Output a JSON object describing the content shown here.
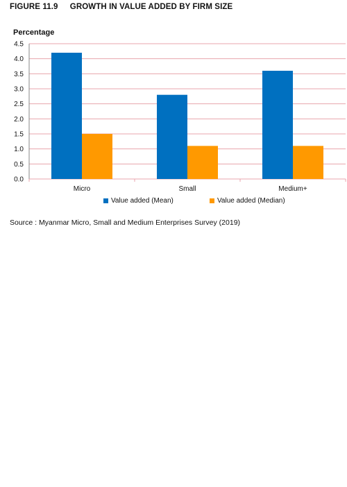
{
  "figure": {
    "number": "FIGURE 11.9",
    "title": "GROWTH IN VALUE ADDED BY FIRM SIZE"
  },
  "chart_data": {
    "type": "bar",
    "title": "",
    "xlabel": "",
    "ylabel": "Percentage",
    "categories": [
      "Micro",
      "Small",
      "Medium+"
    ],
    "series": [
      {
        "name": "Value added (Mean)",
        "values": [
          4.2,
          2.8,
          3.6
        ],
        "color": "#0070C0"
      },
      {
        "name": "Value added (Median)",
        "values": [
          1.5,
          1.1,
          1.1
        ],
        "color": "#FF9900"
      }
    ],
    "ylim": [
      0,
      4.5
    ],
    "yticks": [
      "0.0",
      "0.5",
      "1.0",
      "1.5",
      "2.0",
      "2.5",
      "3.0",
      "3.5",
      "4.0",
      "4.5"
    ],
    "grid": true,
    "gridColor": "#E8A4AC",
    "legend": "bottom"
  },
  "source": "Source : Myanmar Micro, Small and Medium Enterprises Survey (2019)"
}
